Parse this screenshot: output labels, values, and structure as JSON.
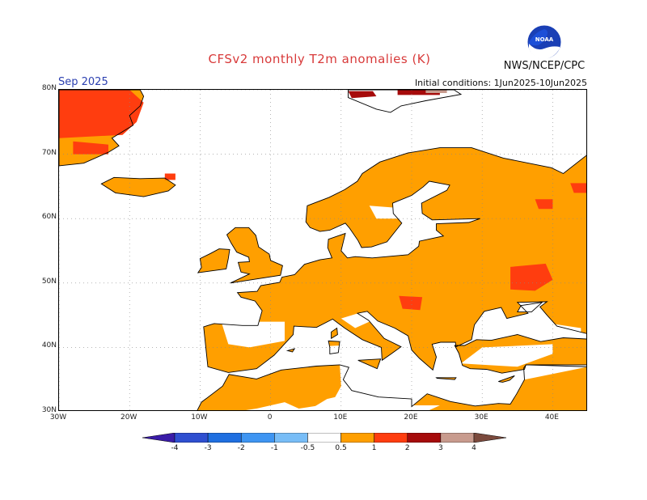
{
  "header": {
    "title": "CFSv2 monthly T2m anomalies (K)",
    "agency": "NWS/NCEP/CPC",
    "period": "Sep 2025",
    "initial_conditions": "Initial conditions: 1Jun2025-10Jun2025",
    "logo_text": "NOAA"
  },
  "map": {
    "extent": {
      "lon_min": -30,
      "lon_max": 45,
      "lat_min": 30,
      "lat_max": 80
    },
    "lat_ticks": [
      {
        "value": 80,
        "label": "80N"
      },
      {
        "value": 70,
        "label": "70N"
      },
      {
        "value": 60,
        "label": "60N"
      },
      {
        "value": 50,
        "label": "50N"
      },
      {
        "value": 40,
        "label": "40N"
      },
      {
        "value": 30,
        "label": "30N"
      }
    ],
    "lon_ticks": [
      {
        "value": -30,
        "label": "30W"
      },
      {
        "value": -20,
        "label": "20W"
      },
      {
        "value": -10,
        "label": "10W"
      },
      {
        "value": 0,
        "label": "0"
      },
      {
        "value": 10,
        "label": "10E"
      },
      {
        "value": 20,
        "label": "20E"
      },
      {
        "value": 30,
        "label": "30E"
      },
      {
        "value": 40,
        "label": "40E"
      }
    ],
    "grid": "dotted",
    "colors": {
      "anom_0_5_1": "#ff9f00",
      "anom_1_2": "#ff3d0f",
      "anom_2_3": "#a60b0b",
      "anom_3_4": "#c89b8e"
    }
  },
  "colorbar": {
    "bins": [
      {
        "color": "#3a1ca8"
      },
      {
        "color": "#2f4fd0"
      },
      {
        "color": "#1f6fe0"
      },
      {
        "color": "#3e95f2"
      },
      {
        "color": "#78bdf7"
      },
      {
        "color": "#ffffff"
      },
      {
        "color": "#ff9f00"
      },
      {
        "color": "#ff3d0f"
      },
      {
        "color": "#a60b0b"
      },
      {
        "color": "#c89b8e"
      },
      {
        "color": "#7b4a3d"
      }
    ],
    "labels": [
      "-4",
      "-3",
      "-2",
      "-1",
      "-0.5",
      "0.5",
      "1",
      "2",
      "3",
      "4"
    ]
  }
}
